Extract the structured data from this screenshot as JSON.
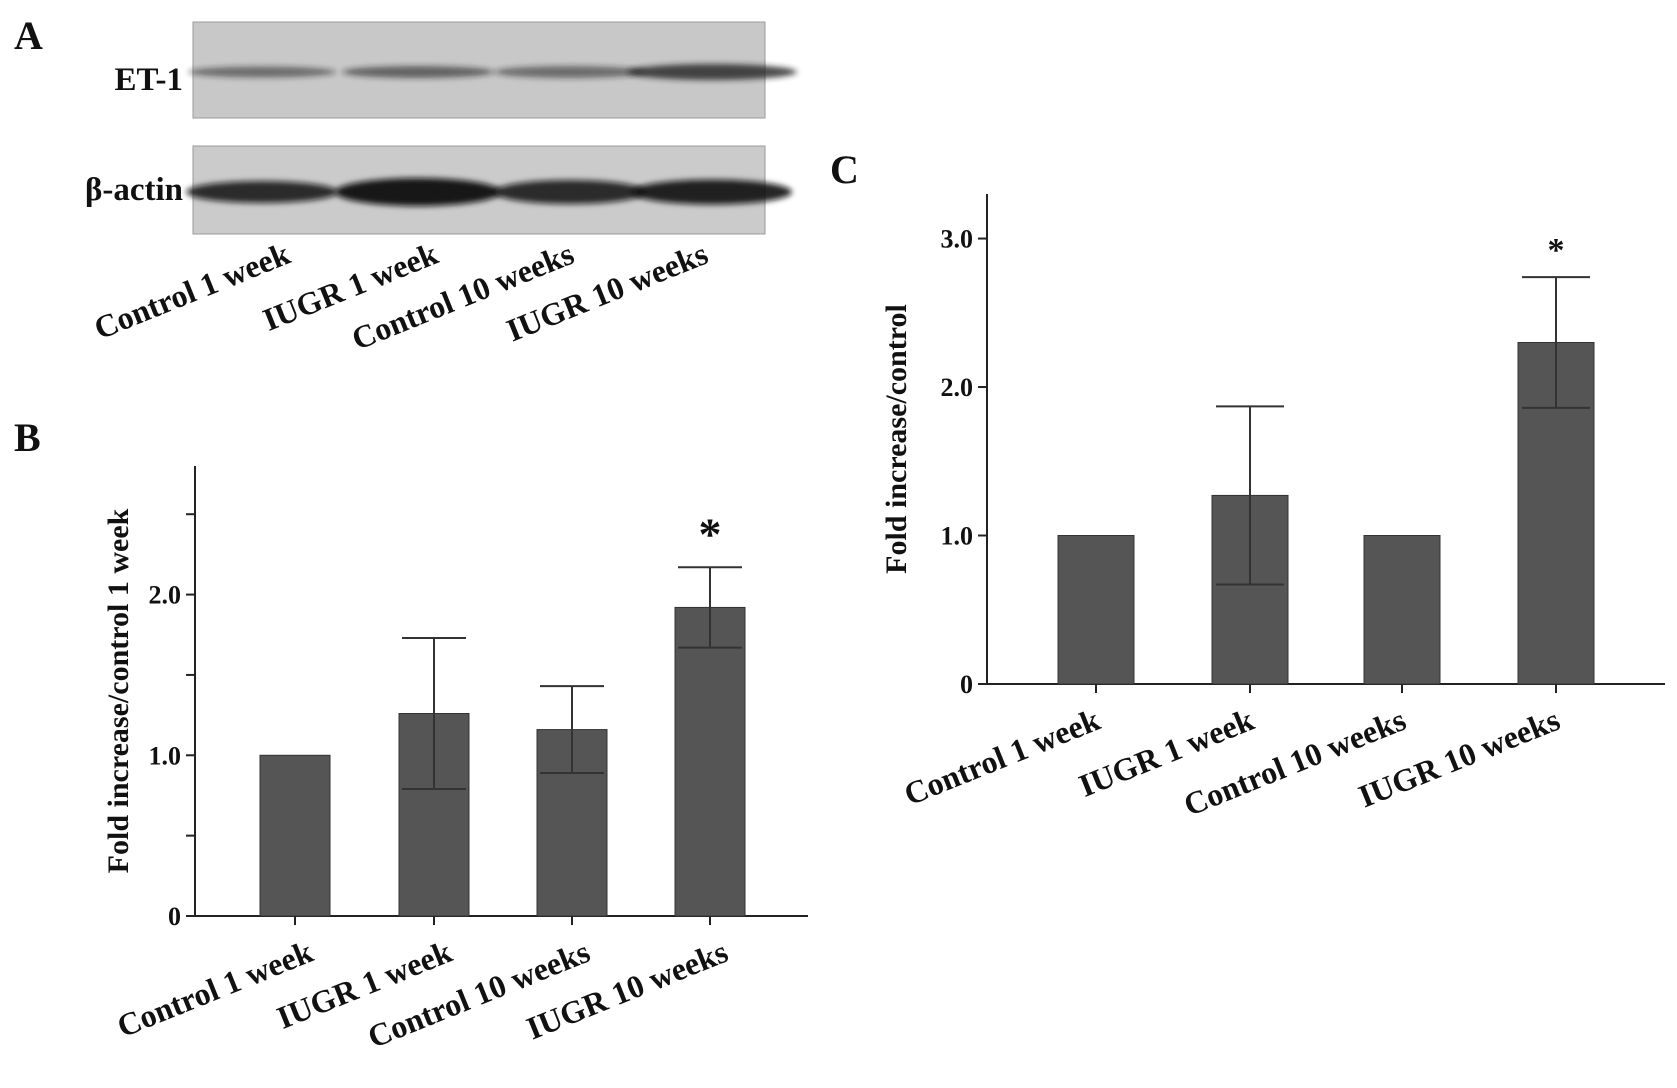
{
  "panels": {
    "a": {
      "letter": "A"
    },
    "b": {
      "letter": "B"
    },
    "c": {
      "letter": "C"
    }
  },
  "blot": {
    "rows": [
      "ET-1",
      "β-actin"
    ],
    "lanes": [
      "Control 1 week",
      "IUGR 1 week",
      "Control 10 weeks",
      "IUGR 10 weeks"
    ]
  },
  "chart_data": [
    {
      "panel": "B",
      "type": "bar",
      "categories": [
        "Control 1 week",
        "IUGR 1 week",
        "Control 10 weeks",
        "IUGR 10 weeks"
      ],
      "values": [
        1.0,
        1.26,
        1.16,
        1.92
      ],
      "errors": [
        0.0,
        0.47,
        0.27,
        0.25
      ],
      "annotations": [
        "",
        "",
        "",
        "*"
      ],
      "ylabel": "Fold increase/control 1 week",
      "ylim": [
        0,
        2.8
      ],
      "ytick_values": [
        0,
        0.5,
        1.0,
        1.5,
        2.0,
        2.5
      ],
      "ytick_labels": [
        "0",
        "",
        "1.0",
        "",
        "2.0",
        ""
      ],
      "bar_color": "#555555",
      "grid": false
    },
    {
      "panel": "C",
      "type": "bar",
      "categories": [
        "Control 1 week",
        "IUGR 1 week",
        "Control 10 weeks",
        "IUGR 10 weeks"
      ],
      "values": [
        1.0,
        1.27,
        1.0,
        2.3
      ],
      "errors": [
        0.0,
        0.6,
        0.0,
        0.44
      ],
      "annotations": [
        "",
        "",
        "",
        "*"
      ],
      "ylabel": "Fold increase/control",
      "ylim": [
        0,
        3.3
      ],
      "ytick_values": [
        0,
        1.0,
        2.0,
        3.0
      ],
      "ytick_labels": [
        "0",
        "1.0",
        "2.0",
        "3.0"
      ],
      "bar_color": "#555555",
      "grid": false
    }
  ]
}
